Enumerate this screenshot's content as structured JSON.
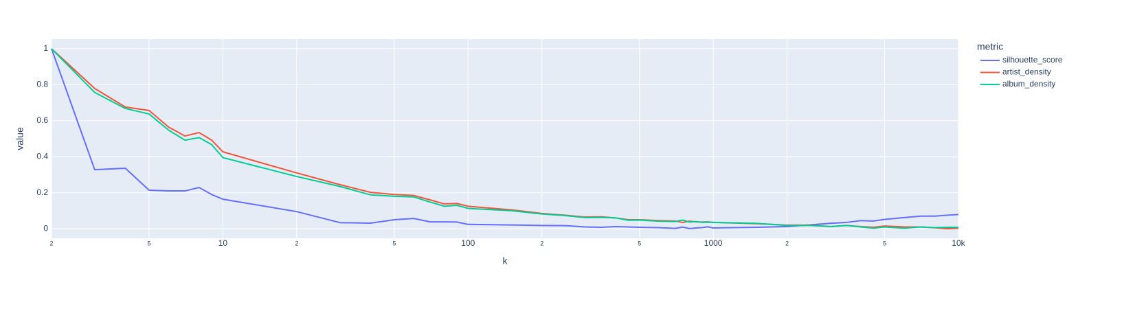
{
  "chart_data": {
    "type": "line",
    "x_label": "k",
    "y_label": "value",
    "legend_title": "metric",
    "log_x": true,
    "grid": true,
    "legend_position": "right",
    "xlim": [
      2,
      10000
    ],
    "ylim": [
      -0.053,
      1.053
    ],
    "xticks": [
      2,
      5,
      10,
      {
        "value": 20,
        "label": "2"
      },
      {
        "value": 50,
        "label": "5"
      },
      100,
      {
        "value": 200,
        "label": "2"
      },
      {
        "value": 500,
        "label": "5"
      },
      1000,
      {
        "value": 2000,
        "label": "2"
      },
      {
        "value": 5000,
        "label": "5"
      },
      {
        "value": 10000,
        "label": "10k"
      }
    ],
    "yticks": [
      0,
      0.2,
      0.4,
      0.6,
      0.8,
      1
    ],
    "x": [
      2,
      3,
      4,
      5,
      6,
      7,
      8,
      9,
      10,
      20,
      30,
      40,
      50,
      60,
      70,
      80,
      90,
      100,
      150,
      200,
      250,
      300,
      350,
      400,
      450,
      500,
      600,
      700,
      750,
      800,
      850,
      900,
      950,
      1000,
      1500,
      2000,
      2500,
      3000,
      3500,
      4000,
      4500,
      5000,
      6000,
      7000,
      8000,
      9000,
      10000
    ],
    "series": [
      {
        "name": "silhouette_score",
        "color": "#636efa",
        "values": [
          1,
          0.328,
          0.336,
          0.214,
          0.21,
          0.21,
          0.229,
          0.19,
          0.164,
          0.095,
          0.034,
          0.031,
          0.05,
          0.057,
          0.038,
          0.038,
          0.037,
          0.024,
          0.021,
          0.018,
          0.017,
          0.01,
          0.008,
          0.012,
          0.01,
          0.008,
          0.006,
          0.002,
          0.009,
          0.001,
          0.004,
          0.006,
          0.011,
          0.004,
          0.008,
          0.012,
          0.022,
          0.03,
          0.035,
          0.045,
          0.043,
          0.052,
          0.062,
          0.07,
          0.07,
          0.075,
          0.079
        ]
      },
      {
        "name": "artist_density",
        "color": "#EF553B",
        "values": [
          1,
          0.779,
          0.676,
          0.657,
          0.565,
          0.515,
          0.534,
          0.492,
          0.427,
          0.31,
          0.245,
          0.202,
          0.19,
          0.185,
          0.16,
          0.138,
          0.14,
          0.125,
          0.105,
          0.085,
          0.075,
          0.065,
          0.066,
          0.06,
          0.05,
          0.05,
          0.045,
          0.043,
          0.035,
          0.042,
          0.038,
          0.037,
          0.038,
          0.035,
          0.028,
          0.02,
          0.02,
          0.012,
          0.018,
          0.012,
          0.008,
          0.015,
          0.01,
          0.01,
          0.005,
          0,
          0.003
        ]
      },
      {
        "name": "album_density",
        "color": "#00cc96",
        "values": [
          1,
          0.757,
          0.668,
          0.637,
          0.548,
          0.492,
          0.506,
          0.467,
          0.395,
          0.29,
          0.235,
          0.188,
          0.18,
          0.177,
          0.148,
          0.125,
          0.13,
          0.113,
          0.1,
          0.082,
          0.073,
          0.062,
          0.063,
          0.06,
          0.047,
          0.048,
          0.042,
          0.04,
          0.048,
          0.037,
          0.04,
          0.035,
          0.036,
          0.035,
          0.03,
          0.018,
          0.018,
          0.012,
          0.018,
          0.01,
          0.003,
          0.01,
          0.003,
          0.01,
          0.006,
          0.008,
          0.008
        ]
      }
    ]
  }
}
